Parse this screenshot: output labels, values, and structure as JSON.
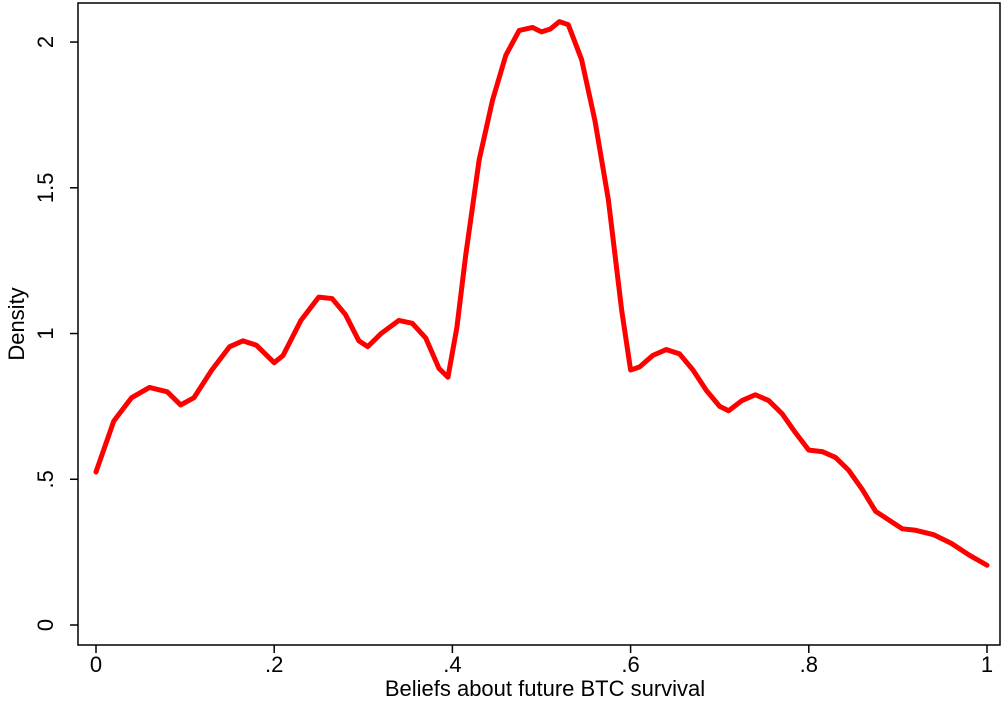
{
  "chart_data": {
    "type": "line",
    "xlabel": "Beliefs about future BTC survival",
    "ylabel": "Density",
    "x": [
      0,
      0.02,
      0.04,
      0.06,
      0.08,
      0.095,
      0.11,
      0.13,
      0.15,
      0.165,
      0.18,
      0.2,
      0.21,
      0.23,
      0.25,
      0.265,
      0.28,
      0.295,
      0.305,
      0.32,
      0.34,
      0.355,
      0.37,
      0.385,
      0.395,
      0.405,
      0.415,
      0.43,
      0.445,
      0.46,
      0.475,
      0.49,
      0.5,
      0.51,
      0.52,
      0.53,
      0.545,
      0.56,
      0.575,
      0.59,
      0.6,
      0.61,
      0.625,
      0.64,
      0.655,
      0.67,
      0.685,
      0.7,
      0.71,
      0.725,
      0.74,
      0.755,
      0.77,
      0.785,
      0.8,
      0.815,
      0.83,
      0.845,
      0.86,
      0.875,
      0.89,
      0.905,
      0.92,
      0.94,
      0.96,
      0.98,
      1.0
    ],
    "series": [
      {
        "color": "#ff0000",
        "values": [
          0.525,
          0.7,
          0.78,
          0.815,
          0.8,
          0.755,
          0.78,
          0.875,
          0.955,
          0.975,
          0.96,
          0.9,
          0.925,
          1.045,
          1.125,
          1.12,
          1.065,
          0.975,
          0.955,
          1.0,
          1.045,
          1.035,
          0.985,
          0.88,
          0.85,
          1.02,
          1.27,
          1.595,
          1.8,
          1.955,
          2.04,
          2.05,
          2.035,
          2.045,
          2.07,
          2.06,
          1.94,
          1.73,
          1.46,
          1.08,
          0.875,
          0.885,
          0.925,
          0.945,
          0.93,
          0.875,
          0.805,
          0.75,
          0.735,
          0.77,
          0.79,
          0.77,
          0.725,
          0.66,
          0.6,
          0.595,
          0.575,
          0.53,
          0.465,
          0.39,
          0.36,
          0.33,
          0.325,
          0.31,
          0.28,
          0.24,
          0.205
        ]
      }
    ],
    "xlim": [
      -0.0202,
      1.0146
    ],
    "ylim": [
      -0.0686,
      2.134
    ],
    "xticks": [
      0,
      {
        "value": 0.2,
        "label": ".2"
      },
      {
        "value": 0.4,
        "label": ".4"
      },
      {
        "value": 0.6,
        "label": ".6"
      },
      {
        "value": 0.8,
        "label": ".8"
      },
      1
    ],
    "yticks": [
      0,
      {
        "value": 0.5,
        "label": ".5"
      },
      1,
      1.5,
      2
    ],
    "grid": false
  }
}
